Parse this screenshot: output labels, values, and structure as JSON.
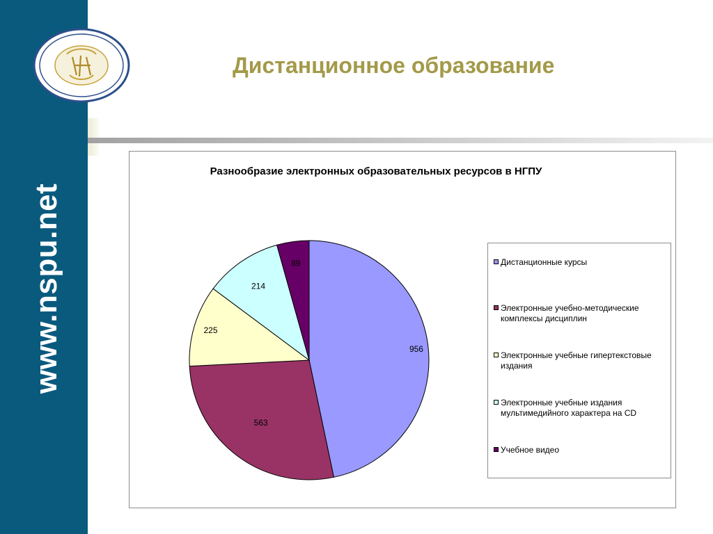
{
  "page": {
    "title": "Дистанционное образование",
    "url_text": "www.nspu.net"
  },
  "colors": {
    "sidebar": "#0a5a7e",
    "title": "#a39a49",
    "logo_gold": "#c8a23c"
  },
  "chart_data": {
    "type": "pie",
    "title": "Разнообразие электронных образовательных ресурсов в НГПУ",
    "categories": [
      "Дистанционные курсы",
      "Электронные учебно-методические комплексы дисциплин",
      "Электронные учебные гипертекстовые издания",
      "Электронные учебные издания мультимедийного характера на CD",
      "Учебное видео"
    ],
    "values": [
      956,
      563,
      225,
      214,
      89
    ],
    "colors": [
      "#9999ff",
      "#993366",
      "#ffffcc",
      "#ccffff",
      "#660066"
    ],
    "data_labels": [
      "956",
      "563",
      "225",
      "214",
      "89"
    ],
    "legend_position": "right"
  }
}
